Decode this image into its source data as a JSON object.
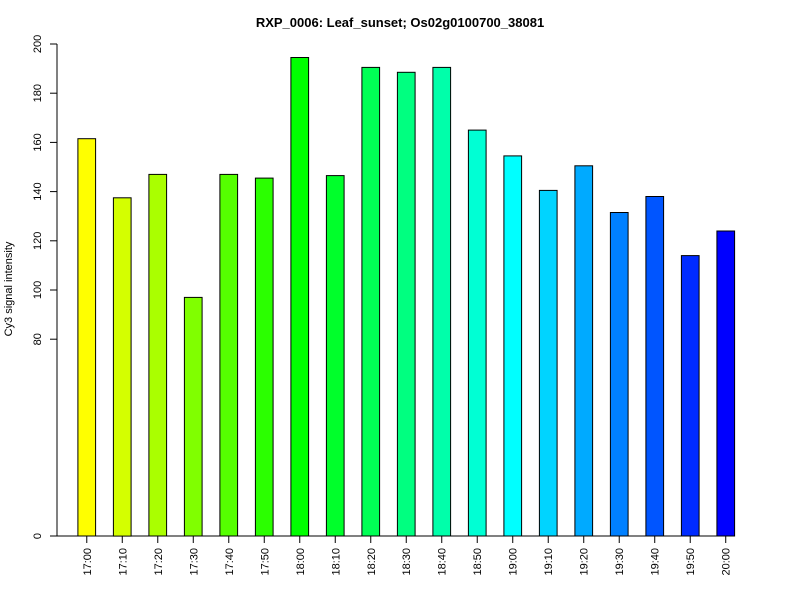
{
  "chart_data": {
    "type": "bar",
    "title": "RXP_0006: Leaf_sunset; Os02g0100700_38081",
    "xlabel": "",
    "ylabel": "Cy3 signal intensity",
    "categories": [
      "17:00",
      "17:10",
      "17:20",
      "17:30",
      "17:40",
      "17:50",
      "18:00",
      "18:10",
      "18:20",
      "18:30",
      "18:40",
      "18:50",
      "19:00",
      "19:10",
      "19:20",
      "19:30",
      "19:40",
      "19:50",
      "20:00"
    ],
    "values": [
      161.5,
      137.5,
      147,
      97,
      147,
      145.5,
      194.5,
      146.5,
      190.5,
      188.5,
      190.5,
      165,
      154.5,
      140.5,
      150.5,
      131.5,
      138,
      114,
      124
    ],
    "colors": [
      "#ffff00",
      "#d4ff00",
      "#aaff00",
      "#80ff00",
      "#55ff00",
      "#2bff00",
      "#00ff00",
      "#00ff2b",
      "#00ff55",
      "#00ff80",
      "#00ffaa",
      "#00ffd4",
      "#00ffff",
      "#00d4ff",
      "#00aaff",
      "#0080ff",
      "#0055ff",
      "#002bff",
      "#0000ff"
    ],
    "yticks": [
      0,
      80,
      100,
      120,
      140,
      160,
      180,
      200
    ],
    "ylim": [
      0,
      200
    ],
    "grid": false,
    "legend": "none"
  }
}
